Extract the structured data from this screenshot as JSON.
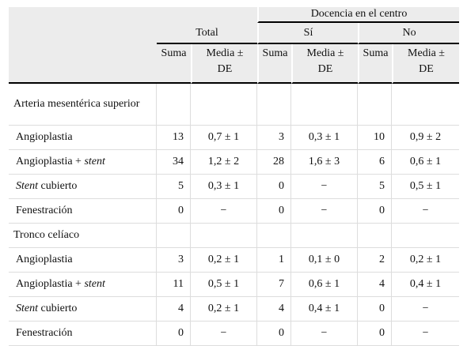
{
  "header": {
    "group_label": "Docencia en el centro",
    "total_label": "Total",
    "si_label": "Sí",
    "no_label": "No",
    "col_sum": "Suma",
    "col_mean_line1": "Media ±",
    "col_mean_line2": "DE"
  },
  "sections": [
    {
      "title": "Arteria mesentérica superior",
      "rows": [
        {
          "pre": "Angioplastia",
          "italic": "",
          "post": "",
          "total_sum": "13",
          "total_mean": "0,7 ± 1",
          "si_sum": "3",
          "si_mean": "0,3 ± 1",
          "no_sum": "10",
          "no_mean": "0,9 ± 2"
        },
        {
          "pre": "Angioplastia + ",
          "italic": "stent",
          "post": "",
          "total_sum": "34",
          "total_mean": "1,2 ± 2",
          "si_sum": "28",
          "si_mean": "1,6 ± 3",
          "no_sum": "6",
          "no_mean": "0,6 ± 1"
        },
        {
          "pre": "",
          "italic": "Stent",
          "post": " cubierto",
          "total_sum": "5",
          "total_mean": "0,3 ± 1",
          "si_sum": "0",
          "si_mean": "−",
          "no_sum": "5",
          "no_mean": "0,5 ± 1"
        },
        {
          "pre": "Fenestración",
          "italic": "",
          "post": "",
          "total_sum": "0",
          "total_mean": "−",
          "si_sum": "0",
          "si_mean": "−",
          "no_sum": "0",
          "no_mean": "−"
        }
      ]
    },
    {
      "title": "Tronco celíaco",
      "rows": [
        {
          "pre": "Angioplastia",
          "italic": "",
          "post": "",
          "total_sum": "3",
          "total_mean": "0,2 ± 1",
          "si_sum": "1",
          "si_mean": "0,1 ± 0",
          "no_sum": "2",
          "no_mean": "0,2 ± 1"
        },
        {
          "pre": "Angioplastia + ",
          "italic": "stent",
          "post": "",
          "total_sum": "11",
          "total_mean": "0,5 ± 1",
          "si_sum": "7",
          "si_mean": "0,6 ± 1",
          "no_sum": "4",
          "no_mean": "0,4 ± 1"
        },
        {
          "pre": "",
          "italic": "Stent",
          "post": " cubierto",
          "total_sum": "4",
          "total_mean": "0,2 ± 1",
          "si_sum": "4",
          "si_mean": "0,4 ± 1",
          "no_sum": "0",
          "no_mean": "−"
        },
        {
          "pre": "Fenestración",
          "italic": "",
          "post": "",
          "total_sum": "0",
          "total_mean": "−",
          "si_sum": "0",
          "si_mean": "−",
          "no_sum": "0",
          "no_mean": "−"
        }
      ]
    }
  ]
}
